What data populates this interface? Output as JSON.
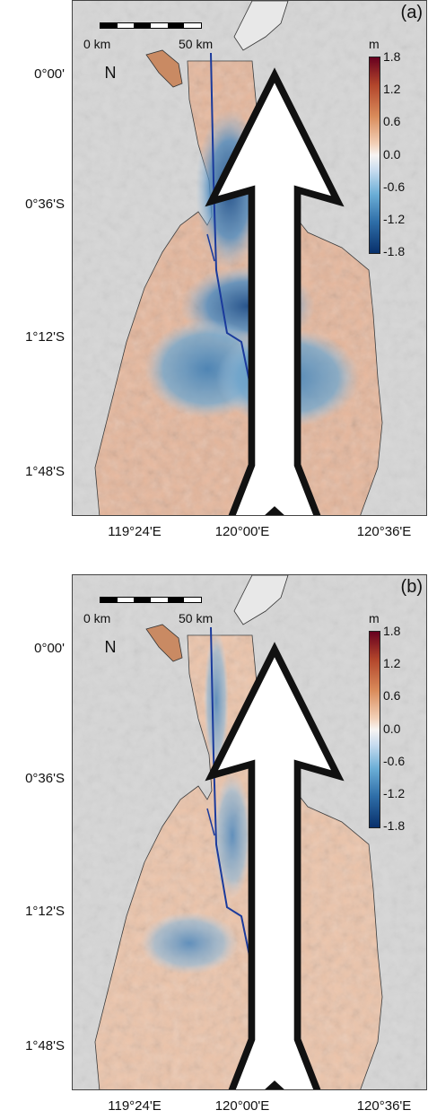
{
  "colorbar": {
    "unit": "m",
    "ticks": [
      "1.8",
      "1.2",
      "0.6",
      "0.0",
      "-0.6",
      "-1.2",
      "-1.8"
    ],
    "range": [
      -1.8,
      1.8
    ],
    "colors": [
      "#67001f",
      "#b2452b",
      "#d98b5a",
      "#f2cfb5",
      "#f7f4f2",
      "#c6dbef",
      "#6baed6",
      "#2f6ea8",
      "#08306b"
    ]
  },
  "scale_bar": {
    "start_label": "0 km",
    "end_label": "50 km"
  },
  "north_arrow": {
    "label": "N",
    "icon": "north-arrow-icon"
  },
  "latitude_labels": [
    "0°00'",
    "0°36'S",
    "1°12'S",
    "1°48'S"
  ],
  "longitude_labels": [
    "119°24'E",
    "120°00'E",
    "120°36'E"
  ],
  "panels": [
    {
      "label": "(a)"
    },
    {
      "label": "(b)"
    }
  ]
}
